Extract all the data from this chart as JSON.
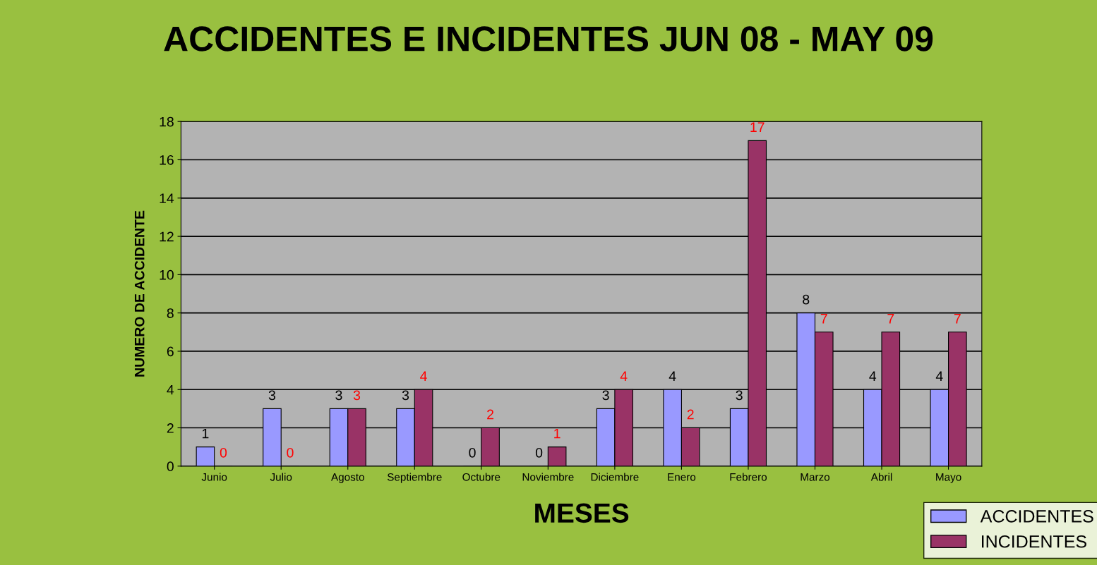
{
  "chart_data": {
    "type": "bar",
    "title": "ACCIDENTES E INCIDENTES JUN 08 - MAY 09",
    "xlabel": "MESES",
    "ylabel": "NUMERO DE ACCIDENTE",
    "categories": [
      "Junio",
      "Julio",
      "Agosto",
      "Septiembre",
      "Octubre",
      "Noviembre",
      "Diciembre",
      "Enero",
      "Febrero",
      "Marzo",
      "Abril",
      "Mayo"
    ],
    "series": [
      {
        "name": "ACCIDENTES",
        "color": "#9999ff",
        "values": [
          1,
          3,
          3,
          3,
          0,
          0,
          3,
          4,
          3,
          8,
          4,
          4
        ]
      },
      {
        "name": "INCIDENTES",
        "color": "#993366",
        "values": [
          0,
          0,
          3,
          4,
          2,
          1,
          4,
          2,
          17,
          7,
          7,
          7
        ]
      }
    ],
    "ylim": [
      0,
      18
    ],
    "yticks": [
      0,
      2,
      4,
      6,
      8,
      10,
      12,
      14,
      16,
      18
    ],
    "grid": "y",
    "legend": "bottom right",
    "data_labels": true
  }
}
